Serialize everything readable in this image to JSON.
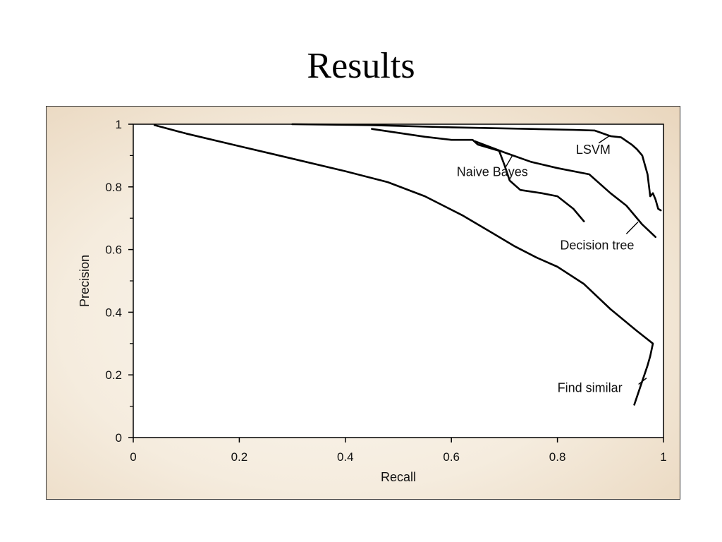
{
  "slide": {
    "title": "Results"
  },
  "chart_data": {
    "type": "line",
    "title": "",
    "xlabel": "Recall",
    "ylabel": "Precision",
    "xlim": [
      0,
      1
    ],
    "ylim": [
      0,
      1
    ],
    "xticks": [
      "0",
      "0.2",
      "0.4",
      "0.6",
      "0.8",
      "1"
    ],
    "yticks": [
      "0",
      "0.2",
      "0.4",
      "0.6",
      "0.8",
      "1"
    ],
    "grid": false,
    "legend": "none",
    "series": [
      {
        "name": "LSVM",
        "x": [
          0.3,
          0.45,
          0.6,
          0.75,
          0.83,
          0.87,
          0.9,
          0.92,
          0.94,
          0.95,
          0.96,
          0.97,
          0.975,
          0.98,
          0.985,
          0.99,
          0.995
        ],
        "y": [
          1.0,
          0.997,
          0.99,
          0.985,
          0.982,
          0.98,
          0.962,
          0.958,
          0.935,
          0.92,
          0.9,
          0.84,
          0.77,
          0.78,
          0.76,
          0.73,
          0.725
        ]
      },
      {
        "name": "Naive Bayes",
        "x": [
          0.45,
          0.55,
          0.6,
          0.64,
          0.65,
          0.69,
          0.7,
          0.71,
          0.73,
          0.77,
          0.8,
          0.83,
          0.85
        ],
        "y": [
          0.985,
          0.96,
          0.95,
          0.95,
          0.935,
          0.915,
          0.87,
          0.82,
          0.79,
          0.78,
          0.77,
          0.73,
          0.69
        ]
      },
      {
        "name": "Decision tree",
        "x": [
          0.645,
          0.7,
          0.75,
          0.8,
          0.86,
          0.9,
          0.93,
          0.96,
          0.985
        ],
        "y": [
          0.945,
          0.91,
          0.88,
          0.86,
          0.84,
          0.78,
          0.74,
          0.68,
          0.64
        ]
      },
      {
        "name": "Find similar",
        "x": [
          0.04,
          0.1,
          0.2,
          0.3,
          0.4,
          0.48,
          0.55,
          0.62,
          0.68,
          0.72,
          0.76,
          0.8,
          0.85,
          0.9,
          0.95,
          0.98,
          0.975,
          0.97,
          0.96,
          0.945
        ],
        "y": [
          0.997,
          0.97,
          0.93,
          0.89,
          0.85,
          0.815,
          0.77,
          0.71,
          0.65,
          0.61,
          0.575,
          0.545,
          0.49,
          0.41,
          0.34,
          0.3,
          0.26,
          0.23,
          0.18,
          0.105
        ]
      }
    ],
    "annotations": [
      {
        "text": "LSVM",
        "series": "LSVM"
      },
      {
        "text": "Naive Bayes",
        "series": "Naive Bayes"
      },
      {
        "text": "Decision tree",
        "series": "Decision tree"
      },
      {
        "text": "Find similar",
        "series": "Find similar"
      }
    ]
  }
}
